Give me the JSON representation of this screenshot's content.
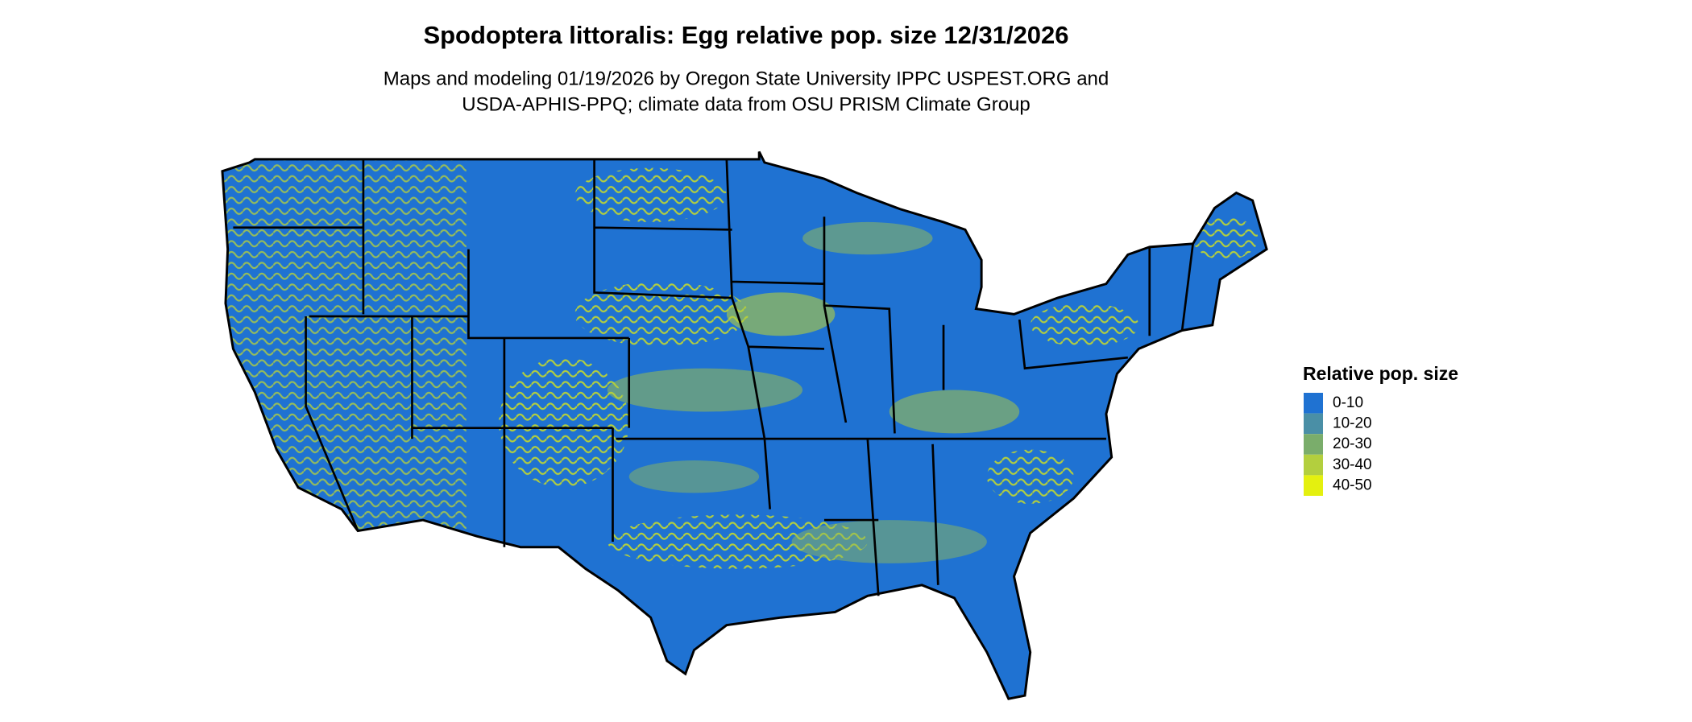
{
  "header": {
    "title": "Spodoptera littoralis: Egg relative pop. size 12/31/2026",
    "subtitle_lines": [
      "Maps and modeling 01/19/2026 by Oregon State University IPPC USPEST.ORG and",
      "USDA-APHIS-PPQ; climate data from OSU PRISM Climate Group"
    ]
  },
  "legend": {
    "title": "Relative pop. size",
    "items": [
      {
        "label": "0-10",
        "color": "#1f72d2"
      },
      {
        "label": "10-20",
        "color": "#4a8fa6"
      },
      {
        "label": "20-30",
        "color": "#7aad6b"
      },
      {
        "label": "30-40",
        "color": "#b3cf3e"
      },
      {
        "label": "40-50",
        "color": "#e4f00f"
      }
    ]
  }
}
